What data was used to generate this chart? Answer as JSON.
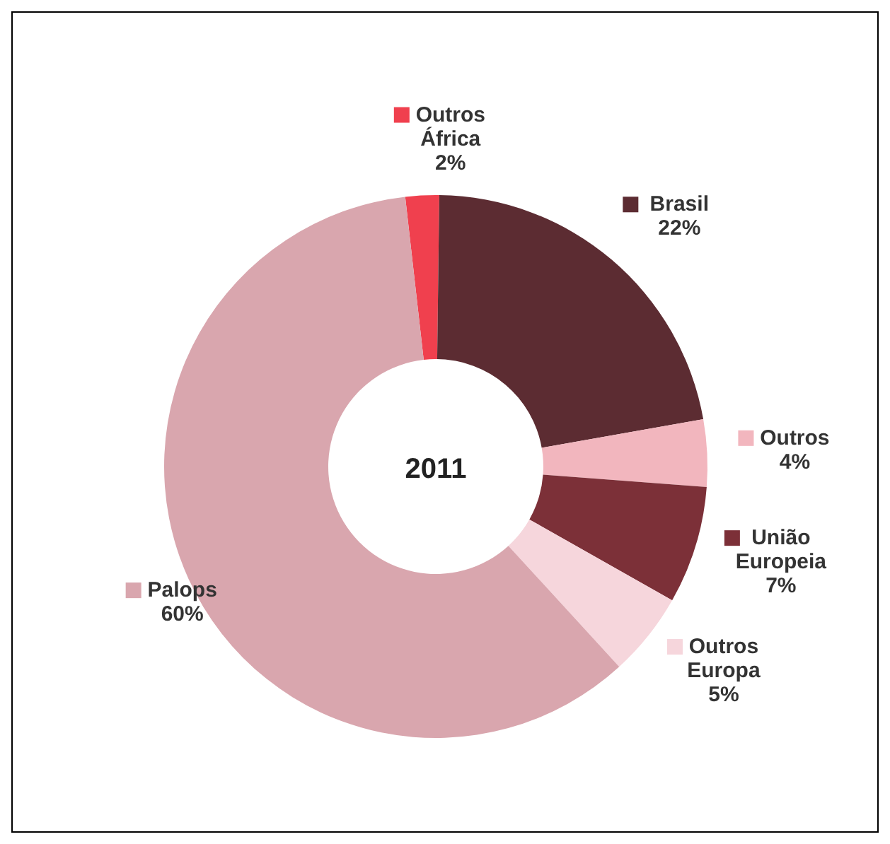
{
  "chart_data": {
    "type": "donut",
    "legend": "right",
    "title": "2011",
    "categories": [
      "Outros África",
      "Brasil",
      "Outros",
      "União Europeia",
      "Outros Europa",
      "Palops"
    ],
    "values": [
      2,
      22,
      4,
      7,
      5,
      60
    ],
    "value_labels": [
      "2%",
      "22%",
      "4%",
      "7%",
      "5%",
      "60%"
    ],
    "colors": [
      "#f0404e",
      "#5c2c32",
      "#f2b6be",
      "#7c3038",
      "#f6d6dc",
      "#d9a6ae"
    ]
  }
}
